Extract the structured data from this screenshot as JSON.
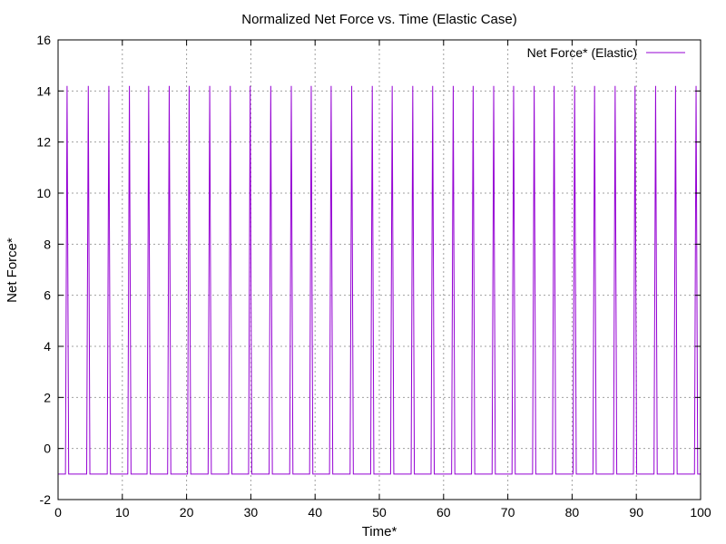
{
  "chart_data": {
    "type": "line",
    "title": "Normalized Net Force vs. Time (Elastic Case)",
    "xlabel": "Time*",
    "ylabel": "Net Force*",
    "xlim": [
      0,
      100
    ],
    "ylim": [
      -2,
      16
    ],
    "xticks": [
      0,
      10,
      20,
      30,
      40,
      50,
      60,
      70,
      80,
      90,
      100
    ],
    "yticks": [
      -2,
      0,
      2,
      4,
      6,
      8,
      10,
      12,
      14,
      16
    ],
    "grid": true,
    "legend_position": "top-right",
    "baseline": -1,
    "peak": 14.2,
    "series": [
      {
        "name": "Net Force* (Elastic)",
        "color": "#9400d3",
        "spike_times": [
          1.4,
          4.7,
          7.9,
          11.1,
          14.1,
          17.3,
          20.4,
          23.6,
          26.8,
          29.9,
          33.1,
          36.3,
          39.4,
          42.5,
          45.7,
          48.9,
          52.0,
          55.2,
          58.3,
          61.5,
          64.6,
          67.8,
          70.9,
          74.1,
          77.2,
          80.4,
          83.5,
          86.7,
          89.8,
          93.0,
          96.1,
          99.3
        ],
        "spike_width": 0.5
      }
    ]
  }
}
